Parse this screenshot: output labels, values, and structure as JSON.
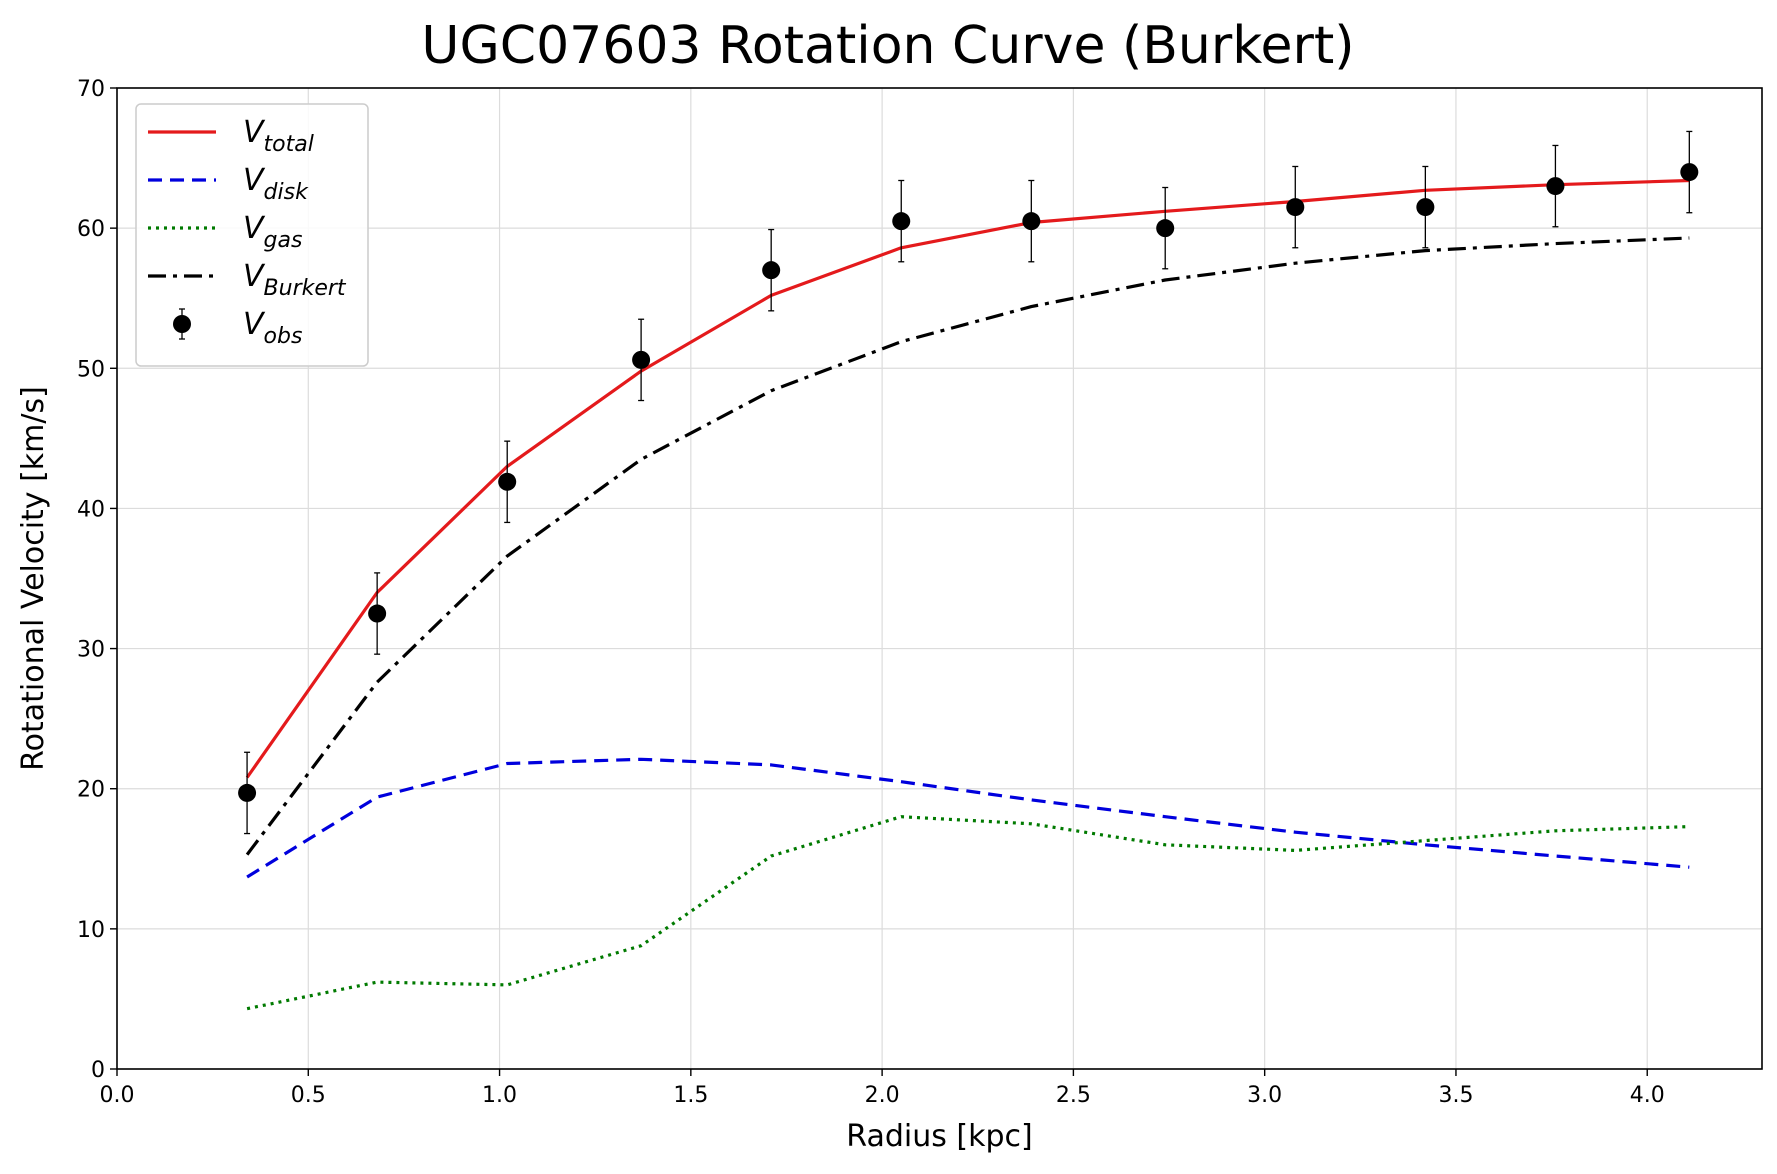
{
  "chart_data": {
    "type": "line",
    "title": "UGC07603 Rotation Curve (Burkert)",
    "xlabel": "Radius [kpc]",
    "ylabel": "Rotational Velocity [km/s]",
    "xlim": [
      0.0,
      4.3
    ],
    "ylim": [
      0,
      70
    ],
    "xticks": [
      0.0,
      0.5,
      1.0,
      1.5,
      2.0,
      2.5,
      3.0,
      3.5,
      4.0
    ],
    "yticks": [
      0,
      10,
      20,
      30,
      40,
      50,
      60,
      70
    ],
    "xtick_labels": [
      "0.0",
      "0.5",
      "1.0",
      "1.5",
      "2.0",
      "2.5",
      "3.0",
      "3.5",
      "4.0"
    ],
    "ytick_labels": [
      "0",
      "10",
      "20",
      "30",
      "40",
      "50",
      "60",
      "70"
    ],
    "grid": true,
    "legend_position": "top-left",
    "x": [
      0.34,
      0.68,
      1.02,
      1.37,
      1.71,
      2.05,
      2.39,
      2.74,
      3.08,
      3.42,
      3.76,
      4.11
    ],
    "series": [
      {
        "key": "total",
        "legend_base": "V",
        "legend_sub": "total",
        "style": "solid",
        "color": "#e41a1c",
        "values": [
          20.8,
          34.0,
          43.0,
          49.8,
          55.2,
          58.6,
          60.4,
          61.2,
          61.9,
          62.7,
          63.1,
          63.4
        ]
      },
      {
        "key": "disk",
        "legend_base": "V",
        "legend_sub": "disk",
        "style": "dashed",
        "color": "#0000dd",
        "values": [
          13.7,
          19.4,
          21.8,
          22.1,
          21.7,
          20.5,
          19.2,
          18.0,
          16.9,
          16.0,
          15.2,
          14.4
        ]
      },
      {
        "key": "gas",
        "legend_base": "V",
        "legend_sub": "gas",
        "style": "dotted",
        "color": "#007a00",
        "values": [
          4.3,
          6.2,
          6.0,
          8.8,
          15.2,
          18.0,
          17.5,
          16.0,
          15.6,
          16.3,
          17.0,
          17.3
        ]
      },
      {
        "key": "burkert",
        "legend_base": "V",
        "legend_sub": "Burkert",
        "style": "dashdot",
        "color": "#000000",
        "values": [
          15.3,
          27.6,
          36.6,
          43.5,
          48.4,
          51.9,
          54.4,
          56.3,
          57.5,
          58.4,
          58.9,
          59.3
        ]
      }
    ],
    "observed": {
      "legend_base": "V",
      "legend_sub": "obs",
      "color": "#000000",
      "values": [
        19.7,
        32.5,
        41.9,
        50.6,
        57.0,
        60.5,
        60.5,
        60.0,
        61.5,
        61.5,
        63.0,
        64.0
      ],
      "errors": [
        2.9,
        2.9,
        2.9,
        2.9,
        2.9,
        2.9,
        2.9,
        2.9,
        2.9,
        2.9,
        2.9,
        2.9
      ]
    }
  }
}
